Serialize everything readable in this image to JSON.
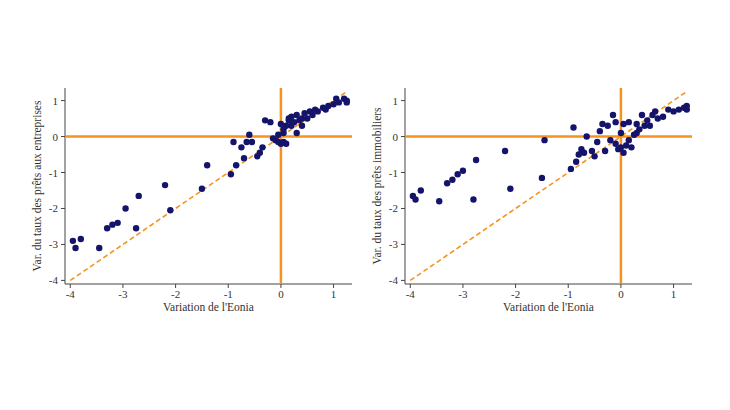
{
  "chart_data": [
    {
      "type": "scatter",
      "x_label": "Variation de l'Eonia",
      "y_label": "Var. du taux des prêts aux entreprises",
      "color": "#14146b",
      "x": [
        -3.95,
        -3.9,
        -3.8,
        -3.45,
        -3.3,
        -3.2,
        -3.1,
        -2.95,
        -2.75,
        -2.7,
        -2.2,
        -2.1,
        -1.5,
        -1.4,
        -0.95,
        -0.9,
        -0.85,
        -0.75,
        -0.7,
        -0.65,
        -0.6,
        -0.55,
        -0.45,
        -0.4,
        -0.35,
        -0.3,
        -0.2,
        -0.15,
        -0.1,
        -0.05,
        0,
        0.05,
        0.05,
        0.1,
        0.1,
        0.15,
        0.2,
        0.2,
        0.25,
        0.3,
        0.3,
        0.35,
        0.4,
        0.4,
        0.45,
        0.5,
        0.55,
        0.6,
        0.65,
        0.7,
        0.8,
        0.85,
        0.9,
        1.0,
        1.05,
        1.1,
        1.2,
        1.25,
        1.25,
        0.15,
        0.05,
        -0.05,
        0.0
      ],
      "values": [
        -2.9,
        -3.1,
        -2.85,
        -3.1,
        -2.55,
        -2.45,
        -2.4,
        -2.0,
        -2.55,
        -1.65,
        -1.35,
        -2.05,
        -1.45,
        -0.8,
        -1.05,
        -0.15,
        -0.8,
        -0.3,
        -0.6,
        -0.15,
        0.05,
        -0.15,
        -0.55,
        -0.45,
        -0.3,
        0.45,
        0.4,
        -0.05,
        -0.1,
        -0.15,
        -0.2,
        -0.15,
        0.1,
        0.3,
        -0.2,
        0.5,
        0.3,
        0.55,
        0.4,
        0.1,
        0.6,
        0.45,
        0.5,
        0.3,
        0.65,
        0.5,
        0.7,
        0.6,
        0.75,
        0.7,
        0.8,
        0.75,
        0.85,
        0.9,
        1.05,
        0.95,
        1.05,
        1.0,
        0.95,
        0.45,
        0.2,
        0.05,
        0.35
      ],
      "xlim": [
        -4.1,
        1.35
      ],
      "ylim": [
        -4.1,
        1.35
      ],
      "xticks": [
        -4,
        -3,
        -2,
        -1,
        0,
        1
      ],
      "yticks": [
        -4,
        -3,
        -2,
        -1,
        0,
        1
      ],
      "reference_x": 0,
      "reference_y": 0,
      "diagonal": [
        -4,
        1.25
      ]
    },
    {
      "type": "scatter",
      "x_label": "Variation de l'Eonia",
      "y_label": "Var. du taux des prêts immobiliers",
      "color": "#14146b",
      "x": [
        -3.95,
        -3.9,
        -3.8,
        -3.45,
        -3.3,
        -3.2,
        -3.1,
        -3.0,
        -2.8,
        -2.75,
        -2.2,
        -2.1,
        -1.5,
        -1.45,
        -0.95,
        -0.9,
        -0.85,
        -0.8,
        -0.75,
        -0.7,
        -0.65,
        -0.55,
        -0.5,
        -0.45,
        -0.4,
        -0.35,
        -0.3,
        -0.25,
        -0.2,
        -0.15,
        -0.1,
        -0.05,
        0,
        0.05,
        0.05,
        0.1,
        0.15,
        0.15,
        0.2,
        0.25,
        0.3,
        0.3,
        0.35,
        0.4,
        0.45,
        0.5,
        0.55,
        0.6,
        0.65,
        0.7,
        0.8,
        0.9,
        1.0,
        1.1,
        1.2,
        1.25,
        1.25,
        0.0,
        -0.1
      ],
      "values": [
        -1.65,
        -1.75,
        -1.5,
        -1.8,
        -1.3,
        -1.2,
        -1.05,
        -0.95,
        -1.75,
        -0.65,
        -0.4,
        -1.45,
        -1.15,
        -0.1,
        -0.9,
        0.25,
        -0.7,
        -0.5,
        -0.35,
        -0.45,
        0.0,
        -0.4,
        -0.55,
        -0.15,
        0.15,
        0.35,
        -0.4,
        0.3,
        -0.1,
        0.6,
        -0.2,
        -0.35,
        -0.3,
        -0.45,
        0.35,
        -0.25,
        0.4,
        -0.1,
        -0.3,
        0.05,
        0.35,
        0.1,
        0.2,
        0.6,
        0.3,
        0.45,
        0.3,
        0.6,
        0.7,
        0.5,
        0.55,
        0.75,
        0.7,
        0.75,
        0.8,
        0.75,
        0.85,
        0.1,
        0.4
      ],
      "xlim": [
        -4.1,
        1.35
      ],
      "ylim": [
        -4.1,
        1.35
      ],
      "xticks": [
        -4,
        -3,
        -2,
        -1,
        0,
        1
      ],
      "yticks": [
        -4,
        -3,
        -2,
        -1,
        0,
        1
      ],
      "reference_x": 0,
      "reference_y": 0,
      "diagonal": [
        -4,
        1.25
      ]
    }
  ]
}
